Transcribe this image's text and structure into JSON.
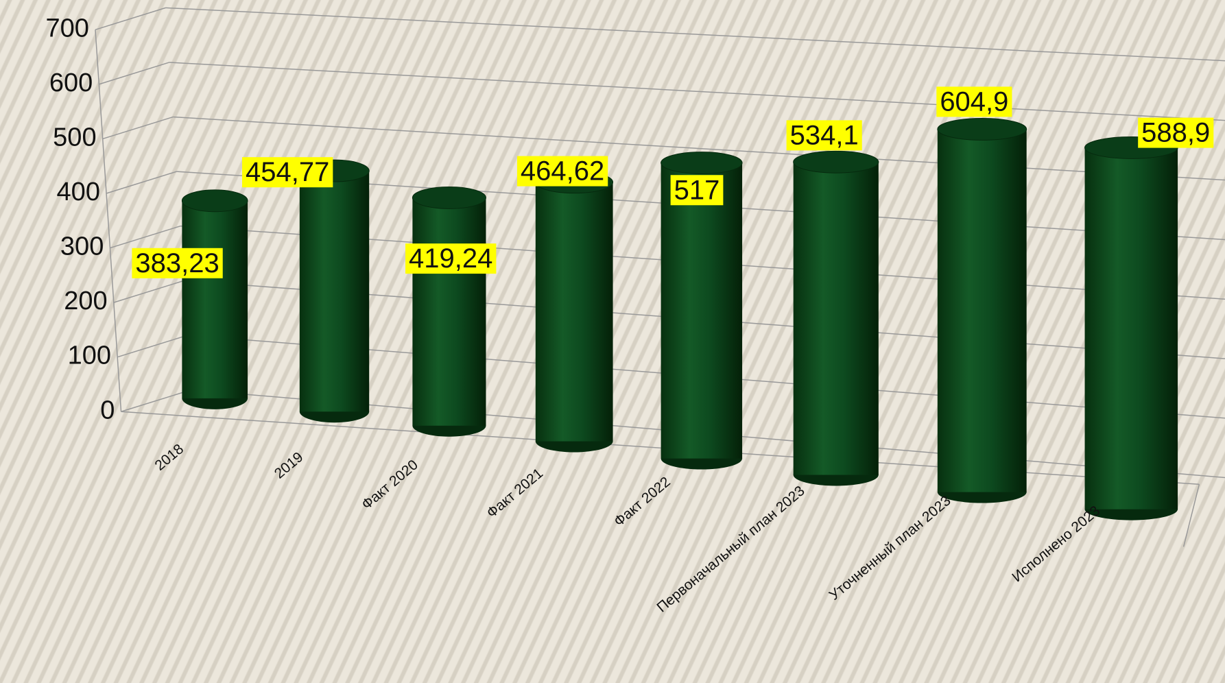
{
  "chart_data": {
    "type": "bar",
    "categories": [
      "2018",
      "2019",
      "Факт 2020",
      "Факт 2021",
      "Факт 2022",
      "Первоначальный план 2023",
      "Уточненный план 2023",
      "Исполнено 2023"
    ],
    "values": [
      383.23,
      454.77,
      419.24,
      464.62,
      517,
      534.1,
      604.9,
      588.9
    ],
    "value_labels": [
      "383,23",
      "454,77",
      "419,24",
      "464,62",
      "517",
      "534,1",
      "604,9",
      "588,9"
    ],
    "color": "#0d4a1f",
    "ylim": [
      0,
      700
    ],
    "yticks": [
      0,
      100,
      200,
      300,
      400,
      500,
      600,
      700
    ],
    "grid": true
  }
}
